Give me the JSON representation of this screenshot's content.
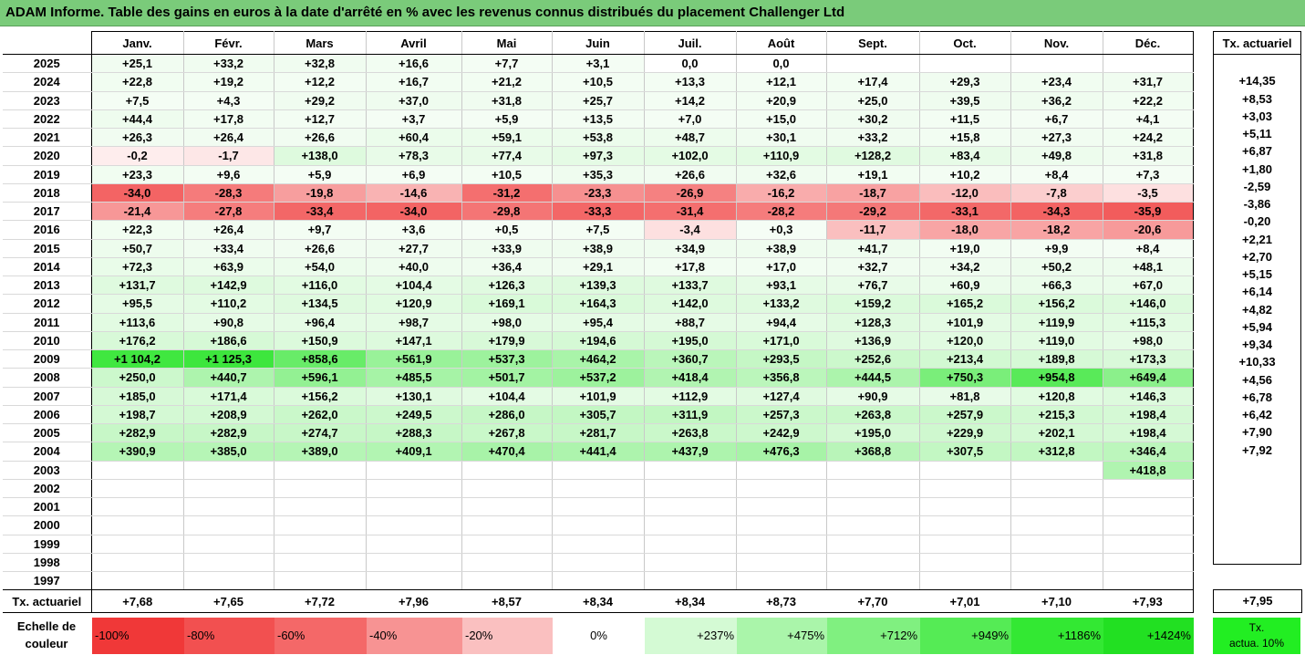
{
  "title": "ADAM Informe. Table des gains en euros à la date d'arrêté en % avec les revenus connus distribués du placement Challenger Ltd",
  "months": [
    "Janv.",
    "Févr.",
    "Mars",
    "Avril",
    "Mai",
    "Juin",
    "Juil.",
    "Août",
    "Sept.",
    "Oct.",
    "Nov.",
    "Déc."
  ],
  "annual_header": "Tx. actuariel",
  "rows": [
    {
      "year": "2025",
      "values": [
        "+25,1",
        "+33,2",
        "+32,8",
        "+16,6",
        "+7,7",
        "+3,1",
        "0,0",
        "0,0",
        "",
        "",
        "",
        ""
      ],
      "annual": ""
    },
    {
      "year": "2024",
      "values": [
        "+22,8",
        "+19,2",
        "+12,2",
        "+16,7",
        "+21,2",
        "+10,5",
        "+13,3",
        "+12,1",
        "+17,4",
        "+29,3",
        "+23,4",
        "+31,7"
      ],
      "annual": "+14,35"
    },
    {
      "year": "2023",
      "values": [
        "+7,5",
        "+4,3",
        "+29,2",
        "+37,0",
        "+31,8",
        "+25,7",
        "+14,2",
        "+20,9",
        "+25,0",
        "+39,5",
        "+36,2",
        "+22,2"
      ],
      "annual": "+8,53"
    },
    {
      "year": "2022",
      "values": [
        "+44,4",
        "+17,8",
        "+12,7",
        "+3,7",
        "+5,9",
        "+13,5",
        "+7,0",
        "+15,0",
        "+30,2",
        "+11,5",
        "+6,7",
        "+4,1"
      ],
      "annual": "+3,03"
    },
    {
      "year": "2021",
      "values": [
        "+26,3",
        "+26,4",
        "+26,6",
        "+60,4",
        "+59,1",
        "+53,8",
        "+48,7",
        "+30,1",
        "+33,2",
        "+15,8",
        "+27,3",
        "+24,2"
      ],
      "annual": "+5,11"
    },
    {
      "year": "2020",
      "values": [
        "-0,2",
        "-1,7",
        "+138,0",
        "+78,3",
        "+77,4",
        "+97,3",
        "+102,0",
        "+110,9",
        "+128,2",
        "+83,4",
        "+49,8",
        "+31,8"
      ],
      "annual": "+6,87"
    },
    {
      "year": "2019",
      "values": [
        "+23,3",
        "+9,6",
        "+5,9",
        "+6,9",
        "+10,5",
        "+35,3",
        "+26,6",
        "+32,6",
        "+19,1",
        "+10,2",
        "+8,4",
        "+7,3"
      ],
      "annual": "+1,80"
    },
    {
      "year": "2018",
      "values": [
        "-34,0",
        "-28,3",
        "-19,8",
        "-14,6",
        "-31,2",
        "-23,3",
        "-26,9",
        "-16,2",
        "-18,7",
        "-12,0",
        "-7,8",
        "-3,5"
      ],
      "annual": "-2,59"
    },
    {
      "year": "2017",
      "values": [
        "-21,4",
        "-27,8",
        "-33,4",
        "-34,0",
        "-29,8",
        "-33,3",
        "-31,4",
        "-28,2",
        "-29,2",
        "-33,1",
        "-34,3",
        "-35,9"
      ],
      "annual": "-3,86"
    },
    {
      "year": "2016",
      "values": [
        "+22,3",
        "+26,4",
        "+9,7",
        "+3,6",
        "+0,5",
        "+7,5",
        "-3,4",
        "+0,3",
        "-11,7",
        "-18,0",
        "-18,2",
        "-20,6"
      ],
      "annual": "-0,20"
    },
    {
      "year": "2015",
      "values": [
        "+50,7",
        "+33,4",
        "+26,6",
        "+27,7",
        "+33,9",
        "+38,9",
        "+34,9",
        "+38,9",
        "+41,7",
        "+19,0",
        "+9,9",
        "+8,4"
      ],
      "annual": "+2,21"
    },
    {
      "year": "2014",
      "values": [
        "+72,3",
        "+63,9",
        "+54,0",
        "+40,0",
        "+36,4",
        "+29,1",
        "+17,8",
        "+17,0",
        "+32,7",
        "+34,2",
        "+50,2",
        "+48,1"
      ],
      "annual": "+2,70"
    },
    {
      "year": "2013",
      "values": [
        "+131,7",
        "+142,9",
        "+116,0",
        "+104,4",
        "+126,3",
        "+139,3",
        "+133,7",
        "+93,1",
        "+76,7",
        "+60,9",
        "+66,3",
        "+67,0"
      ],
      "annual": "+5,15"
    },
    {
      "year": "2012",
      "values": [
        "+95,5",
        "+110,2",
        "+134,5",
        "+120,9",
        "+169,1",
        "+164,3",
        "+142,0",
        "+133,2",
        "+159,2",
        "+165,2",
        "+156,2",
        "+146,0"
      ],
      "annual": "+6,14"
    },
    {
      "year": "2011",
      "values": [
        "+113,6",
        "+90,8",
        "+96,4",
        "+98,7",
        "+98,0",
        "+95,4",
        "+88,7",
        "+94,4",
        "+128,3",
        "+101,9",
        "+119,9",
        "+115,3"
      ],
      "annual": "+4,82"
    },
    {
      "year": "2010",
      "values": [
        "+176,2",
        "+186,6",
        "+150,9",
        "+147,1",
        "+179,9",
        "+194,6",
        "+195,0",
        "+171,0",
        "+136,9",
        "+120,0",
        "+119,0",
        "+98,0"
      ],
      "annual": "+5,94"
    },
    {
      "year": "2009",
      "values": [
        "+1 104,2",
        "+1 125,3",
        "+858,6",
        "+561,9",
        "+537,3",
        "+464,2",
        "+360,7",
        "+293,5",
        "+252,6",
        "+213,4",
        "+189,8",
        "+173,3"
      ],
      "annual": "+9,34"
    },
    {
      "year": "2008",
      "values": [
        "+250,0",
        "+440,7",
        "+596,1",
        "+485,5",
        "+501,7",
        "+537,2",
        "+418,4",
        "+356,8",
        "+444,5",
        "+750,3",
        "+954,8",
        "+649,4"
      ],
      "annual": "+10,33"
    },
    {
      "year": "2007",
      "values": [
        "+185,0",
        "+171,4",
        "+156,2",
        "+130,1",
        "+104,4",
        "+101,9",
        "+112,9",
        "+127,4",
        "+90,9",
        "+81,8",
        "+120,8",
        "+146,3"
      ],
      "annual": "+4,56"
    },
    {
      "year": "2006",
      "values": [
        "+198,7",
        "+208,9",
        "+262,0",
        "+249,5",
        "+286,0",
        "+305,7",
        "+311,9",
        "+257,3",
        "+263,8",
        "+257,9",
        "+215,3",
        "+198,4"
      ],
      "annual": "+6,78"
    },
    {
      "year": "2005",
      "values": [
        "+282,9",
        "+282,9",
        "+274,7",
        "+288,3",
        "+267,8",
        "+281,7",
        "+263,8",
        "+242,9",
        "+195,0",
        "+229,9",
        "+202,1",
        "+198,4"
      ],
      "annual": "+6,42"
    },
    {
      "year": "2004",
      "values": [
        "+390,9",
        "+385,0",
        "+389,0",
        "+409,1",
        "+470,4",
        "+441,4",
        "+437,9",
        "+476,3",
        "+368,8",
        "+307,5",
        "+312,8",
        "+346,4"
      ],
      "annual": "+7,90"
    },
    {
      "year": "2003",
      "values": [
        "",
        "",
        "",
        "",
        "",
        "",
        "",
        "",
        "",
        "",
        "",
        "+418,8"
      ],
      "annual": "+7,92"
    },
    {
      "year": "2002",
      "values": [
        "",
        "",
        "",
        "",
        "",
        "",
        "",
        "",
        "",
        "",
        "",
        ""
      ],
      "annual": ""
    },
    {
      "year": "2001",
      "values": [
        "",
        "",
        "",
        "",
        "",
        "",
        "",
        "",
        "",
        "",
        "",
        ""
      ],
      "annual": ""
    },
    {
      "year": "2000",
      "values": [
        "",
        "",
        "",
        "",
        "",
        "",
        "",
        "",
        "",
        "",
        "",
        ""
      ],
      "annual": ""
    },
    {
      "year": "1999",
      "values": [
        "",
        "",
        "",
        "",
        "",
        "",
        "",
        "",
        "",
        "",
        "",
        ""
      ],
      "annual": ""
    },
    {
      "year": "1998",
      "values": [
        "",
        "",
        "",
        "",
        "",
        "",
        "",
        "",
        "",
        "",
        "",
        ""
      ],
      "annual": ""
    },
    {
      "year": "1997",
      "values": [
        "",
        "",
        "",
        "",
        "",
        "",
        "",
        "",
        "",
        "",
        "",
        ""
      ],
      "annual": ""
    }
  ],
  "footer": {
    "label": "Tx. actuariel",
    "values": [
      "+7,68",
      "+7,65",
      "+7,72",
      "+7,96",
      "+8,57",
      "+8,34",
      "+8,34",
      "+8,73",
      "+7,70",
      "+7,01",
      "+7,10",
      "+7,93"
    ],
    "annual": "+7,95"
  },
  "scale": {
    "label_line1": "Echelle de",
    "label_line2": "couleur",
    "cells": [
      {
        "label": "-100%",
        "color": "#f03838"
      },
      {
        "label": "-80%",
        "color": "#f25050"
      },
      {
        "label": "-60%",
        "color": "#f46868"
      },
      {
        "label": "-40%",
        "color": "#f79393"
      },
      {
        "label": "-20%",
        "color": "#fac0c0"
      },
      {
        "label": "0%",
        "color": "#ffffff"
      },
      {
        "label": "+237%",
        "color": "#d4fad4"
      },
      {
        "label": "+475%",
        "color": "#aaf5aa"
      },
      {
        "label": "+712%",
        "color": "#80f080"
      },
      {
        "label": "+949%",
        "color": "#55eb55"
      },
      {
        "label": "+1186%",
        "color": "#33e833"
      },
      {
        "label": "+1424%",
        "color": "#22e022"
      }
    ],
    "goal_line1": "Tx.",
    "goal_line2": "actua. 10%",
    "goal_color": "#22ee22"
  },
  "colors": {
    "title_bar": "#7acb7a",
    "positive_max": "#22e022",
    "negative_max": "#f03838"
  }
}
